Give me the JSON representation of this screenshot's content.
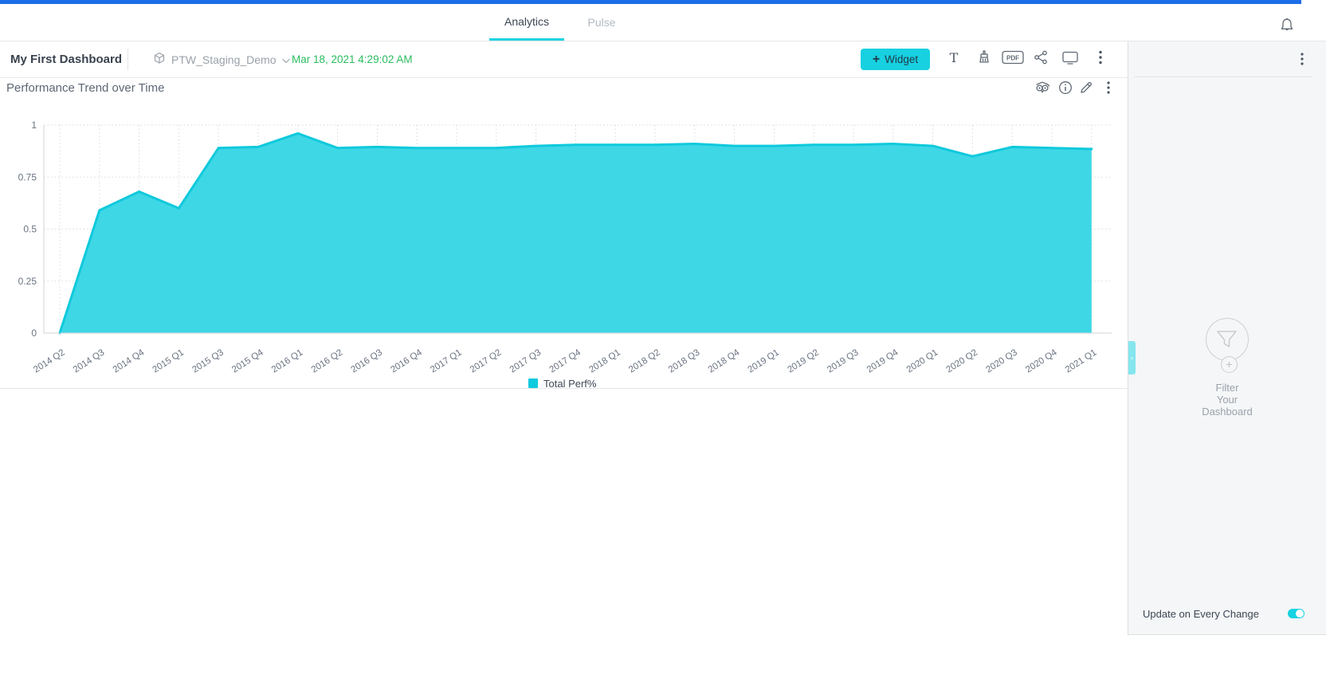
{
  "nav": {
    "tabs": [
      {
        "label": "Analytics",
        "active": true
      },
      {
        "label": "Pulse",
        "active": false
      }
    ],
    "bell_icon": "notifications-bell"
  },
  "toolbar": {
    "dashboard_title": "My First Dashboard",
    "datasource": "PTW_Staging_Demo",
    "last_updated": "Mar 18, 2021 4:29:02 AM",
    "add_widget_plus": "+",
    "add_widget_label": "Widget",
    "pdf_icon_label": "PDF",
    "icons": [
      "text-widget",
      "style-brush",
      "export-pdf",
      "share",
      "tv-view",
      "more-options"
    ]
  },
  "widget": {
    "title": "Performance Trend over Time",
    "header_icons": [
      "ai-owl",
      "info",
      "edit-pencil",
      "more-options"
    ]
  },
  "chart_data": {
    "type": "area",
    "title": "Performance Trend over Time",
    "categories": [
      "2014 Q2",
      "2014 Q3",
      "2014 Q4",
      "2015 Q1",
      "2015 Q3",
      "2015 Q4",
      "2016 Q1",
      "2016 Q2",
      "2016 Q3",
      "2016 Q4",
      "2017 Q1",
      "2017 Q2",
      "2017 Q3",
      "2017 Q4",
      "2018 Q1",
      "2018 Q2",
      "2018 Q3",
      "2018 Q4",
      "2019 Q1",
      "2019 Q2",
      "2019 Q3",
      "2019 Q4",
      "2020 Q1",
      "2020 Q2",
      "2020 Q3",
      "2020 Q4",
      "2021 Q1"
    ],
    "series": [
      {
        "name": "Total Perf%",
        "values": [
          0,
          0.59,
          0.68,
          0.6,
          0.89,
          0.895,
          0.96,
          0.89,
          0.895,
          0.89,
          0.89,
          0.89,
          0.9,
          0.905,
          0.905,
          0.905,
          0.91,
          0.9,
          0.9,
          0.905,
          0.905,
          0.91,
          0.9,
          0.85,
          0.895,
          0.89,
          0.885
        ]
      }
    ],
    "xlabel": "",
    "ylabel": "",
    "ylim": [
      0,
      1
    ],
    "yticks": [
      0,
      0.25,
      0.5,
      0.75,
      1
    ],
    "ytick_labels": [
      "0",
      "0.25",
      "0.5",
      "0.75",
      "1"
    ],
    "grid": "dotted",
    "x_label_rotation": -33,
    "legend": {
      "position": "bottom-center",
      "entries": [
        "Total Perf%"
      ]
    },
    "colors": {
      "area_fill": "#3ed7e6",
      "line": "#0fc9dc",
      "legend_swatch": "#10cbde"
    }
  },
  "filter_panel": {
    "empty_state_lines": [
      "Filter",
      "Your",
      "Dashboard"
    ],
    "plus_badge": "+",
    "collapse_chevron": "›",
    "update_toggle_label": "Update on Every Change",
    "update_toggle_on": true
  },
  "colors": {
    "top_bar_blue": "#1c6de8",
    "accent_cyan": "#17d1e0",
    "date_green": "#2abd5e"
  }
}
